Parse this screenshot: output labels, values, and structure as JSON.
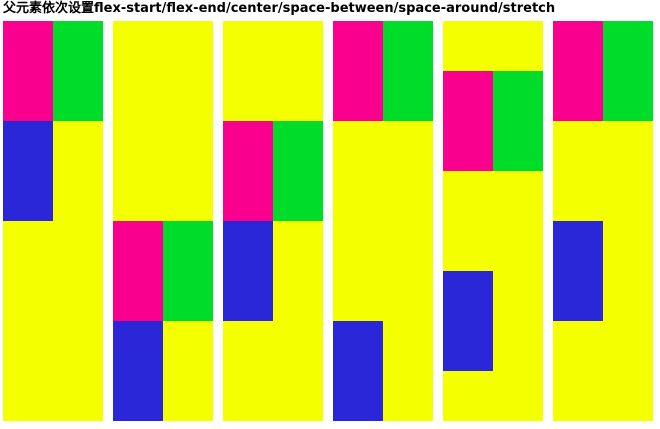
{
  "header": {
    "title": "父元素依次设置flex-start/flex-end/center/space-between/space-around/stretch"
  },
  "colors": {
    "container": "#f4ff00",
    "item_1": "#fa008f",
    "item_2": "#00dc2a",
    "item_3": "#2a27d9"
  }
}
